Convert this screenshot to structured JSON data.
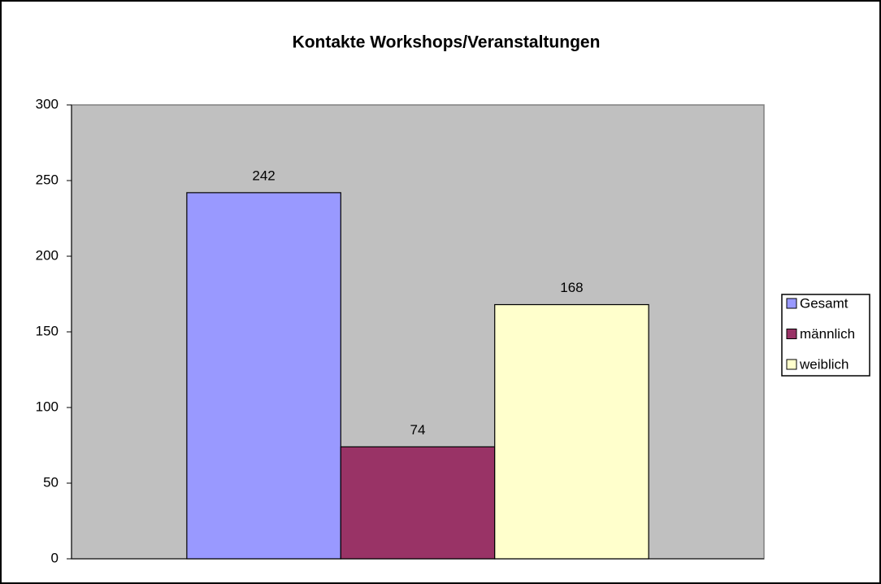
{
  "chart_data": {
    "type": "bar",
    "title": "Kontakte Workshops/Veranstaltungen",
    "categories": [
      null
    ],
    "series": [
      {
        "name": "Gesamt",
        "color": "#9999ff",
        "values": [
          242
        ]
      },
      {
        "name": "männlich",
        "color": "#993366",
        "values": [
          74
        ]
      },
      {
        "name": "weiblich",
        "color": "#ffffcc",
        "values": [
          168
        ]
      }
    ],
    "ylim": [
      0,
      300
    ],
    "yticks": [
      0,
      50,
      100,
      150,
      200,
      250,
      300
    ],
    "grid": false,
    "legend": "right"
  }
}
